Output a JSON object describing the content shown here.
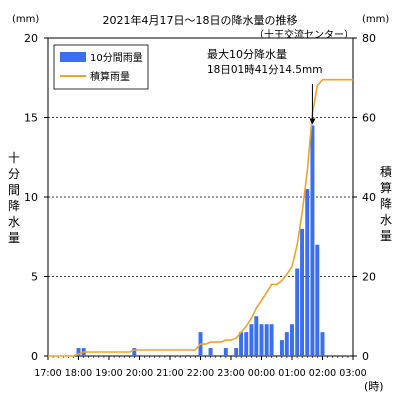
{
  "chart_data": {
    "type": "bar+line",
    "title": "2021年4月17日～18日の降水量の推移",
    "station": "（十王交流センター）",
    "left_unit": "(mm)",
    "right_unit": "(mm)",
    "left_label": "十分間降水量",
    "right_label": "積算降水量",
    "x_unit": "(時)",
    "x_ticks": [
      "17:00",
      "18:00",
      "19:00",
      "20:00",
      "21:00",
      "22:00",
      "23:00",
      "00:00",
      "01:00",
      "02:00",
      "03:00"
    ],
    "y_left": {
      "min": 0,
      "max": 20,
      "ticks": [
        0,
        5,
        10,
        15,
        20
      ]
    },
    "y_right": {
      "min": 0,
      "max": 80,
      "ticks": [
        0,
        20,
        40,
        60,
        80
      ]
    },
    "grid": "dashed horizontal at 5, 10, 15",
    "legend": {
      "position": "top-left",
      "items": [
        {
          "label": "10分間雨量",
          "color": "#3a6ff0",
          "kind": "bar"
        },
        {
          "label": "積算雨量",
          "color": "#f2a22a",
          "kind": "line"
        }
      ]
    },
    "annotation": {
      "line1": "最大10分降水量",
      "line2": "18日01時41分14.5mm",
      "hour": 8.67,
      "value": 14.5
    },
    "series": [
      {
        "name": "10分間雨量",
        "axis": "left",
        "points": [
          {
            "h": 1.0,
            "v": 0.5
          },
          {
            "h": 1.17,
            "v": 0.5
          },
          {
            "h": 2.83,
            "v": 0.5
          },
          {
            "h": 5.0,
            "v": 1.5
          },
          {
            "h": 5.33,
            "v": 0.5
          },
          {
            "h": 5.83,
            "v": 0.5
          },
          {
            "h": 6.17,
            "v": 0.5
          },
          {
            "h": 6.33,
            "v": 1.5
          },
          {
            "h": 6.5,
            "v": 1.5
          },
          {
            "h": 6.67,
            "v": 2.0
          },
          {
            "h": 6.83,
            "v": 2.5
          },
          {
            "h": 7.0,
            "v": 2.0
          },
          {
            "h": 7.17,
            "v": 2.0
          },
          {
            "h": 7.33,
            "v": 2.0
          },
          {
            "h": 7.67,
            "v": 1.0
          },
          {
            "h": 7.83,
            "v": 1.5
          },
          {
            "h": 8.0,
            "v": 2.0
          },
          {
            "h": 8.17,
            "v": 5.5
          },
          {
            "h": 8.33,
            "v": 8.0
          },
          {
            "h": 8.5,
            "v": 10.5
          },
          {
            "h": 8.67,
            "v": 14.5
          },
          {
            "h": 8.83,
            "v": 7.0
          },
          {
            "h": 9.0,
            "v": 1.5
          }
        ]
      },
      {
        "name": "積算雨量",
        "axis": "right",
        "points": [
          {
            "h": 0.0,
            "v": 0
          },
          {
            "h": 0.83,
            "v": 0
          },
          {
            "h": 1.0,
            "v": 0.5
          },
          {
            "h": 1.17,
            "v": 1.0
          },
          {
            "h": 2.67,
            "v": 1.0
          },
          {
            "h": 2.83,
            "v": 1.5
          },
          {
            "h": 4.83,
            "v": 1.5
          },
          {
            "h": 5.0,
            "v": 3.0
          },
          {
            "h": 5.17,
            "v": 3.0
          },
          {
            "h": 5.33,
            "v": 3.5
          },
          {
            "h": 5.67,
            "v": 3.5
          },
          {
            "h": 5.83,
            "v": 4.0
          },
          {
            "h": 6.0,
            "v": 4.0
          },
          {
            "h": 6.17,
            "v": 4.5
          },
          {
            "h": 6.33,
            "v": 6.0
          },
          {
            "h": 6.5,
            "v": 7.5
          },
          {
            "h": 6.67,
            "v": 9.5
          },
          {
            "h": 6.83,
            "v": 12.0
          },
          {
            "h": 7.0,
            "v": 14.0
          },
          {
            "h": 7.17,
            "v": 16.0
          },
          {
            "h": 7.33,
            "v": 18.0
          },
          {
            "h": 7.5,
            "v": 18.0
          },
          {
            "h": 7.67,
            "v": 19.0
          },
          {
            "h": 7.83,
            "v": 20.5
          },
          {
            "h": 8.0,
            "v": 22.5
          },
          {
            "h": 8.17,
            "v": 28.0
          },
          {
            "h": 8.33,
            "v": 36.0
          },
          {
            "h": 8.5,
            "v": 46.5
          },
          {
            "h": 8.67,
            "v": 61.0
          },
          {
            "h": 8.83,
            "v": 68.0
          },
          {
            "h": 9.0,
            "v": 69.5
          },
          {
            "h": 10.0,
            "v": 69.5
          }
        ]
      }
    ]
  }
}
